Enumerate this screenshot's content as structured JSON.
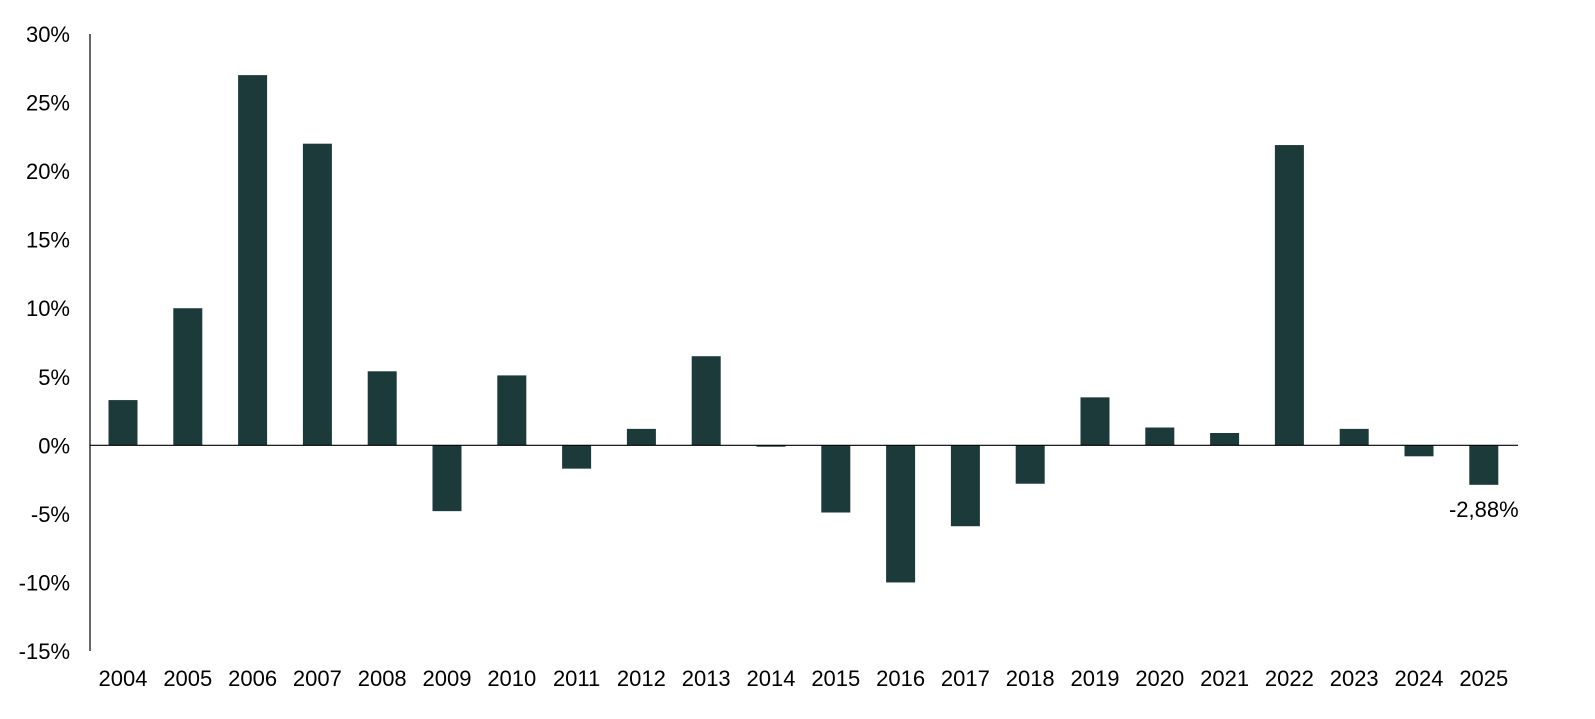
{
  "chart_data": {
    "type": "bar",
    "title": "",
    "xlabel": "",
    "ylabel": "",
    "ylim": [
      -15,
      30
    ],
    "yticks": [
      30,
      25,
      20,
      15,
      10,
      5,
      0,
      -5,
      -10,
      -15
    ],
    "ytick_labels": [
      "30%",
      "25%",
      "20%",
      "15%",
      "10%",
      "5%",
      "0%",
      "-5%",
      "-10%",
      "-15%"
    ],
    "categories": [
      "2004",
      "2005",
      "2006",
      "2007",
      "2008",
      "2009",
      "2010",
      "2011",
      "2012",
      "2013",
      "2014",
      "2015",
      "2016",
      "2017",
      "2018",
      "2019",
      "2020",
      "2021",
      "2022",
      "2023",
      "2024",
      "2025"
    ],
    "values": [
      3.3,
      10.0,
      27.0,
      22.0,
      5.4,
      -4.8,
      5.1,
      -1.7,
      1.2,
      6.5,
      -0.1,
      -4.9,
      -10.0,
      -5.9,
      -2.8,
      3.5,
      1.3,
      0.9,
      21.9,
      1.2,
      -0.8,
      -2.88
    ],
    "annotations": [
      {
        "category": "2025",
        "text": "-2,88%"
      }
    ],
    "grid": false,
    "colors": {
      "bar": "#1d3a3a",
      "axis": "#000000",
      "text": "#000000"
    }
  }
}
